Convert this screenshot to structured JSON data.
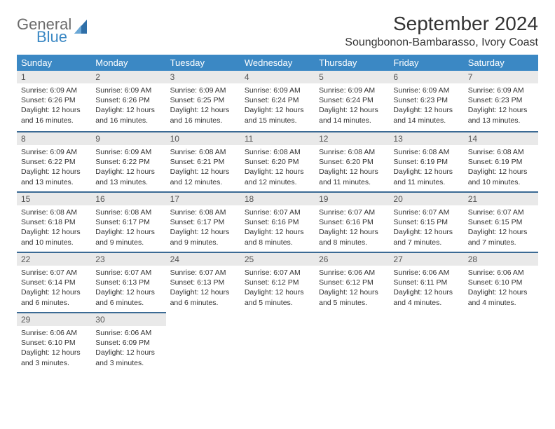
{
  "brand": {
    "word1": "General",
    "word2": "Blue"
  },
  "title": "September 2024",
  "location": "Soungbonon-Bambarasso, Ivory Coast",
  "colors": {
    "header_bg": "#3b88c4",
    "header_text": "#ffffff",
    "daynum_bg": "#e9e9e9",
    "row_divider": "#3b6a94",
    "body_text": "#333333",
    "logo_gray": "#6b6b6b",
    "logo_blue": "#3b88c4",
    "page_bg": "#ffffff"
  },
  "fonts": {
    "title_size_pt": 21,
    "location_size_pt": 12,
    "weekday_size_pt": 10,
    "daynum_size_pt": 9,
    "body_size_pt": 8
  },
  "weekdays": [
    "Sunday",
    "Monday",
    "Tuesday",
    "Wednesday",
    "Thursday",
    "Friday",
    "Saturday"
  ],
  "weeks": [
    [
      {
        "n": "1",
        "sr": "6:09 AM",
        "ss": "6:26 PM",
        "dl": "12 hours and 16 minutes."
      },
      {
        "n": "2",
        "sr": "6:09 AM",
        "ss": "6:26 PM",
        "dl": "12 hours and 16 minutes."
      },
      {
        "n": "3",
        "sr": "6:09 AM",
        "ss": "6:25 PM",
        "dl": "12 hours and 16 minutes."
      },
      {
        "n": "4",
        "sr": "6:09 AM",
        "ss": "6:24 PM",
        "dl": "12 hours and 15 minutes."
      },
      {
        "n": "5",
        "sr": "6:09 AM",
        "ss": "6:24 PM",
        "dl": "12 hours and 14 minutes."
      },
      {
        "n": "6",
        "sr": "6:09 AM",
        "ss": "6:23 PM",
        "dl": "12 hours and 14 minutes."
      },
      {
        "n": "7",
        "sr": "6:09 AM",
        "ss": "6:23 PM",
        "dl": "12 hours and 13 minutes."
      }
    ],
    [
      {
        "n": "8",
        "sr": "6:09 AM",
        "ss": "6:22 PM",
        "dl": "12 hours and 13 minutes."
      },
      {
        "n": "9",
        "sr": "6:09 AM",
        "ss": "6:22 PM",
        "dl": "12 hours and 13 minutes."
      },
      {
        "n": "10",
        "sr": "6:08 AM",
        "ss": "6:21 PM",
        "dl": "12 hours and 12 minutes."
      },
      {
        "n": "11",
        "sr": "6:08 AM",
        "ss": "6:20 PM",
        "dl": "12 hours and 12 minutes."
      },
      {
        "n": "12",
        "sr": "6:08 AM",
        "ss": "6:20 PM",
        "dl": "12 hours and 11 minutes."
      },
      {
        "n": "13",
        "sr": "6:08 AM",
        "ss": "6:19 PM",
        "dl": "12 hours and 11 minutes."
      },
      {
        "n": "14",
        "sr": "6:08 AM",
        "ss": "6:19 PM",
        "dl": "12 hours and 10 minutes."
      }
    ],
    [
      {
        "n": "15",
        "sr": "6:08 AM",
        "ss": "6:18 PM",
        "dl": "12 hours and 10 minutes."
      },
      {
        "n": "16",
        "sr": "6:08 AM",
        "ss": "6:17 PM",
        "dl": "12 hours and 9 minutes."
      },
      {
        "n": "17",
        "sr": "6:08 AM",
        "ss": "6:17 PM",
        "dl": "12 hours and 9 minutes."
      },
      {
        "n": "18",
        "sr": "6:07 AM",
        "ss": "6:16 PM",
        "dl": "12 hours and 8 minutes."
      },
      {
        "n": "19",
        "sr": "6:07 AM",
        "ss": "6:16 PM",
        "dl": "12 hours and 8 minutes."
      },
      {
        "n": "20",
        "sr": "6:07 AM",
        "ss": "6:15 PM",
        "dl": "12 hours and 7 minutes."
      },
      {
        "n": "21",
        "sr": "6:07 AM",
        "ss": "6:15 PM",
        "dl": "12 hours and 7 minutes."
      }
    ],
    [
      {
        "n": "22",
        "sr": "6:07 AM",
        "ss": "6:14 PM",
        "dl": "12 hours and 6 minutes."
      },
      {
        "n": "23",
        "sr": "6:07 AM",
        "ss": "6:13 PM",
        "dl": "12 hours and 6 minutes."
      },
      {
        "n": "24",
        "sr": "6:07 AM",
        "ss": "6:13 PM",
        "dl": "12 hours and 6 minutes."
      },
      {
        "n": "25",
        "sr": "6:07 AM",
        "ss": "6:12 PM",
        "dl": "12 hours and 5 minutes."
      },
      {
        "n": "26",
        "sr": "6:06 AM",
        "ss": "6:12 PM",
        "dl": "12 hours and 5 minutes."
      },
      {
        "n": "27",
        "sr": "6:06 AM",
        "ss": "6:11 PM",
        "dl": "12 hours and 4 minutes."
      },
      {
        "n": "28",
        "sr": "6:06 AM",
        "ss": "6:10 PM",
        "dl": "12 hours and 4 minutes."
      }
    ],
    [
      {
        "n": "29",
        "sr": "6:06 AM",
        "ss": "6:10 PM",
        "dl": "12 hours and 3 minutes."
      },
      {
        "n": "30",
        "sr": "6:06 AM",
        "ss": "6:09 PM",
        "dl": "12 hours and 3 minutes."
      },
      null,
      null,
      null,
      null,
      null
    ]
  ],
  "labels": {
    "sunrise": "Sunrise:",
    "sunset": "Sunset:",
    "daylight": "Daylight:"
  }
}
